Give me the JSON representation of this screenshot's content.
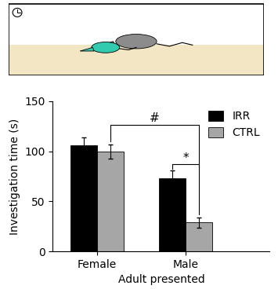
{
  "chart_data": {
    "type": "bar",
    "categories": [
      "Female",
      "Male"
    ],
    "x_label": "Adult presented",
    "y_label": "Investigation time (s)",
    "series": [
      {
        "name": "IRR",
        "color": "#000000",
        "values": [
          106,
          73
        ],
        "errors": [
          8,
          8
        ]
      },
      {
        "name": "CTRL",
        "color": "#a6a6a6",
        "values": [
          100,
          29
        ],
        "errors": [
          7,
          5
        ]
      }
    ],
    "ylim": [
      0,
      150
    ],
    "yticks": [
      0,
      50,
      100,
      150
    ],
    "annotations": [
      "#",
      "*"
    ],
    "legend": "upper right"
  }
}
